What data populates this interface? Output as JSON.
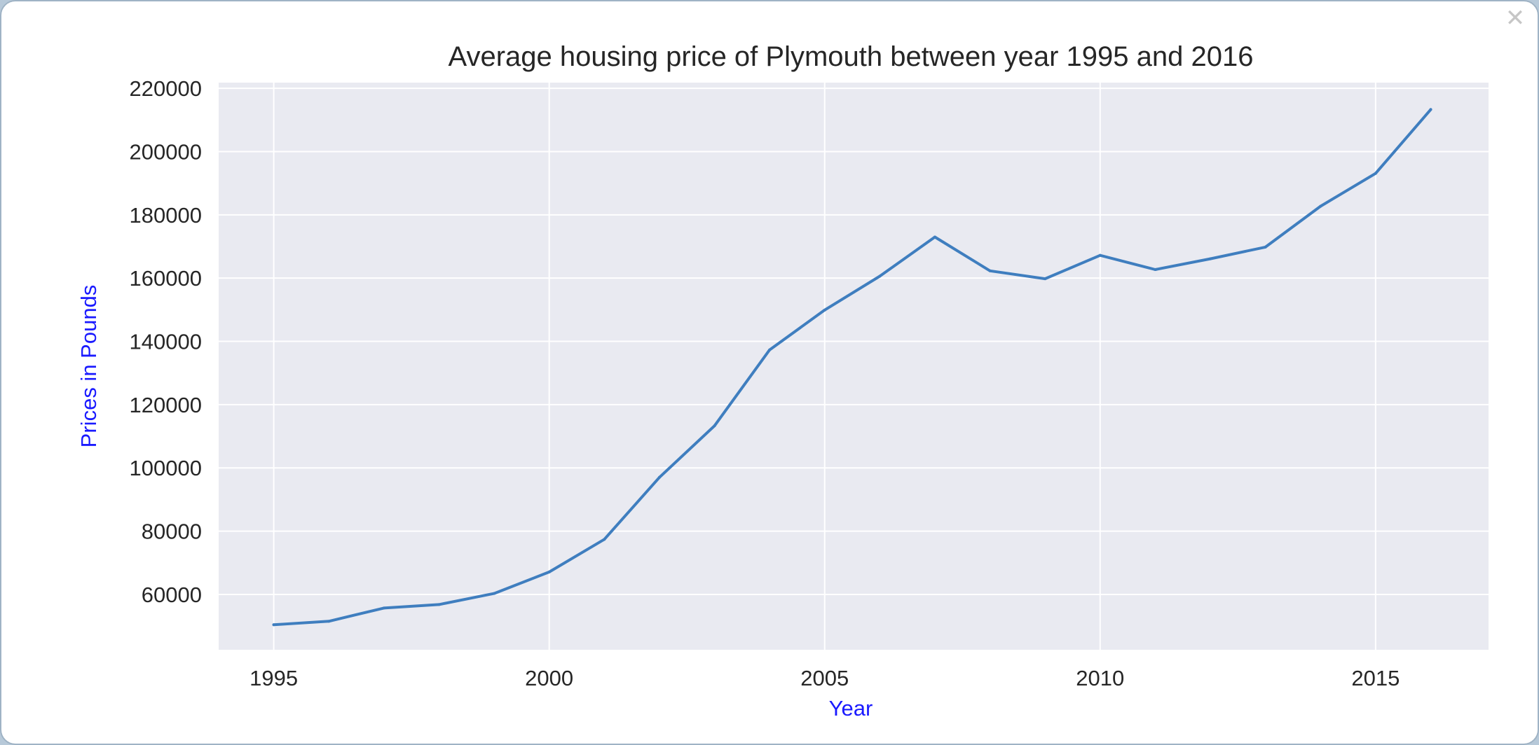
{
  "window": {
    "close_icon": "close-icon"
  },
  "chart_data": {
    "type": "line",
    "title": "Average housing price of Plymouth between year 1995 and 2016",
    "xlabel": "Year",
    "ylabel": "Prices in Pounds",
    "xlabel_color": "#1a1aff",
    "ylabel_color": "#1a1aff",
    "background_color": "#e9eaf1",
    "grid": true,
    "legend": false,
    "xlim": [
      1994,
      2017.05
    ],
    "ylim": [
      42500,
      221800
    ],
    "x_ticks": [
      1995,
      2000,
      2005,
      2010,
      2015
    ],
    "y_ticks": [
      60000,
      80000,
      100000,
      120000,
      140000,
      160000,
      180000,
      200000,
      220000
    ],
    "x_tick_labels": [
      "1995",
      "2000",
      "2005",
      "2010",
      "2015"
    ],
    "y_tick_labels": [
      "60000",
      "80000",
      "100000",
      "120000",
      "140000",
      "160000",
      "180000",
      "200000",
      "220000"
    ],
    "series": [
      {
        "color": "#3f7ebf",
        "x": [
          1995,
          1996,
          1997,
          1998,
          1999,
          2000,
          2001,
          2002,
          2003,
          2004,
          2005,
          2006,
          2007,
          2008,
          2009,
          2010,
          2011,
          2012,
          2013,
          2014,
          2015,
          2016
        ],
        "y": [
          50400,
          51500,
          55700,
          56800,
          60300,
          67100,
          77400,
          97000,
          113300,
          137300,
          149900,
          160600,
          173000,
          162300,
          159800,
          167200,
          162700,
          166100,
          169800,
          182700,
          193100,
          213300
        ]
      }
    ]
  }
}
